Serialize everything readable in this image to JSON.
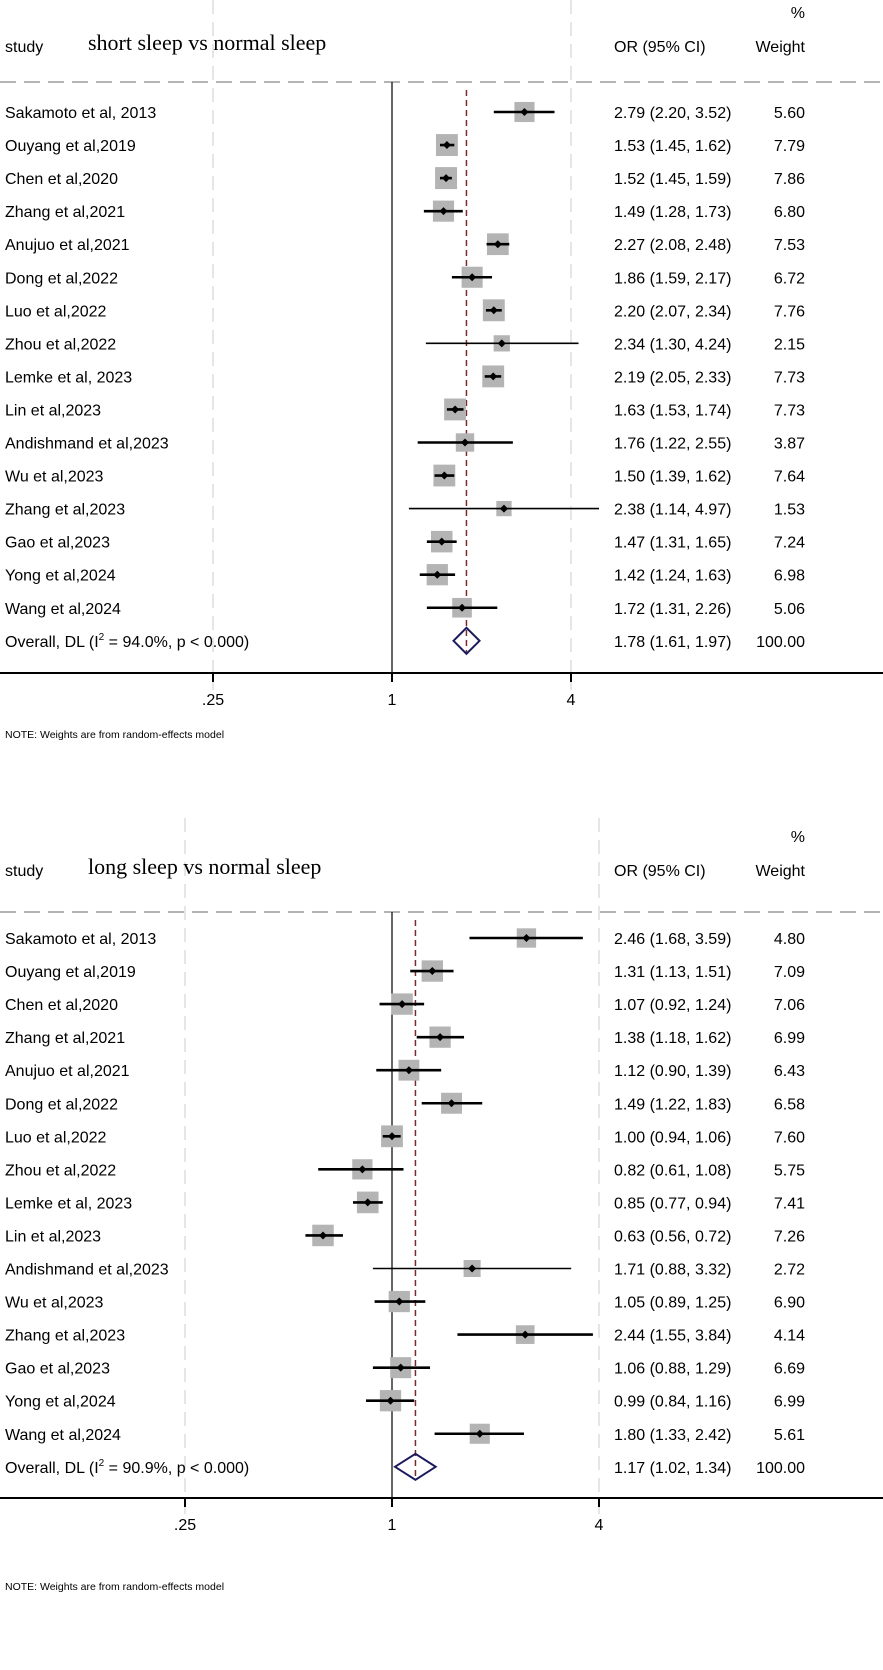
{
  "chart_data": [
    {
      "type": "forest",
      "title": "short sleep vs normal sleep",
      "header": {
        "study": "study",
        "or": "OR (95% CI)",
        "weight_top": "%",
        "weight": "Weight"
      },
      "xscale": "log",
      "xticks": [
        0.25,
        1,
        4
      ],
      "xtick_labels": [
        ".25",
        "1",
        "4"
      ],
      "null_line": 1,
      "studies": [
        {
          "label": "Sakamoto et al, 2013",
          "or": 2.79,
          "lo": 2.2,
          "hi": 3.52,
          "text": "2.79 (2.20, 3.52)",
          "weight": "5.60"
        },
        {
          "label": "Ouyang et al,2019",
          "or": 1.53,
          "lo": 1.45,
          "hi": 1.62,
          "text": "1.53 (1.45, 1.62)",
          "weight": "7.79"
        },
        {
          "label": "Chen et al,2020",
          "or": 1.52,
          "lo": 1.45,
          "hi": 1.59,
          "text": "1.52 (1.45, 1.59)",
          "weight": "7.86"
        },
        {
          "label": "Zhang et al,2021",
          "or": 1.49,
          "lo": 1.28,
          "hi": 1.73,
          "text": "1.49 (1.28, 1.73)",
          "weight": "6.80"
        },
        {
          "label": "Anujuo et al,2021",
          "or": 2.27,
          "lo": 2.08,
          "hi": 2.48,
          "text": "2.27 (2.08, 2.48)",
          "weight": "7.53"
        },
        {
          "label": "Dong et al,2022",
          "or": 1.86,
          "lo": 1.59,
          "hi": 2.17,
          "text": "1.86 (1.59, 2.17)",
          "weight": "6.72"
        },
        {
          "label": "Luo et al,2022",
          "or": 2.2,
          "lo": 2.07,
          "hi": 2.34,
          "text": "2.20 (2.07, 2.34)",
          "weight": "7.76"
        },
        {
          "label": "Zhou et al,2022",
          "or": 2.34,
          "lo": 1.3,
          "hi": 4.24,
          "text": "2.34 (1.30, 4.24)",
          "weight": "2.15"
        },
        {
          "label": "Lemke et al, 2023",
          "or": 2.19,
          "lo": 2.05,
          "hi": 2.33,
          "text": "2.19 (2.05, 2.33)",
          "weight": "7.73"
        },
        {
          "label": "Lin et al,2023",
          "or": 1.63,
          "lo": 1.53,
          "hi": 1.74,
          "text": "1.63 (1.53, 1.74)",
          "weight": "7.73"
        },
        {
          "label": "Andishmand et al,2023",
          "or": 1.76,
          "lo": 1.22,
          "hi": 2.55,
          "text": "1.76 (1.22, 2.55)",
          "weight": "3.87"
        },
        {
          "label": "Wu et al,2023",
          "or": 1.5,
          "lo": 1.39,
          "hi": 1.62,
          "text": "1.50 (1.39, 1.62)",
          "weight": "7.64"
        },
        {
          "label": "Zhang et al,2023",
          "or": 2.38,
          "lo": 1.14,
          "hi": 4.97,
          "text": "2.38 (1.14, 4.97)",
          "weight": "1.53"
        },
        {
          "label": "Gao et al,2023",
          "or": 1.47,
          "lo": 1.31,
          "hi": 1.65,
          "text": "1.47 (1.31, 1.65)",
          "weight": "7.24"
        },
        {
          "label": "Yong et al,2024",
          "or": 1.42,
          "lo": 1.24,
          "hi": 1.63,
          "text": "1.42 (1.24, 1.63)",
          "weight": "6.98"
        },
        {
          "label": "Wang et al,2024",
          "or": 1.72,
          "lo": 1.31,
          "hi": 2.26,
          "text": "1.72 (1.31, 2.26)",
          "weight": "5.06"
        }
      ],
      "overall": {
        "label_pre": "Overall, DL (I",
        "label_sup": "2",
        "label_post": " = 94.0%, p < 0.000)",
        "or": 1.78,
        "lo": 1.61,
        "hi": 1.97,
        "text": "1.78 (1.61, 1.97)",
        "weight": "100.00"
      },
      "note": "NOTE: Weights are from random-effects model"
    },
    {
      "type": "forest",
      "title": "long sleep vs normal sleep",
      "header": {
        "study": "study",
        "or": "OR (95% CI)",
        "weight_top": "%",
        "weight": "Weight"
      },
      "xscale": "log",
      "xticks": [
        0.25,
        1,
        4
      ],
      "xtick_labels": [
        ".25",
        "1",
        "4"
      ],
      "null_line": 1,
      "studies": [
        {
          "label": "Sakamoto et al, 2013",
          "or": 2.46,
          "lo": 1.68,
          "hi": 3.59,
          "text": "2.46 (1.68, 3.59)",
          "weight": "4.80"
        },
        {
          "label": "Ouyang et al,2019",
          "or": 1.31,
          "lo": 1.13,
          "hi": 1.51,
          "text": "1.31 (1.13, 1.51)",
          "weight": "7.09"
        },
        {
          "label": "Chen et al,2020",
          "or": 1.07,
          "lo": 0.92,
          "hi": 1.24,
          "text": "1.07 (0.92, 1.24)",
          "weight": "7.06"
        },
        {
          "label": "Zhang et al,2021",
          "or": 1.38,
          "lo": 1.18,
          "hi": 1.62,
          "text": "1.38 (1.18, 1.62)",
          "weight": "6.99"
        },
        {
          "label": "Anujuo et al,2021",
          "or": 1.12,
          "lo": 0.9,
          "hi": 1.39,
          "text": "1.12 (0.90, 1.39)",
          "weight": "6.43"
        },
        {
          "label": "Dong et al,2022",
          "or": 1.49,
          "lo": 1.22,
          "hi": 1.83,
          "text": "1.49 (1.22, 1.83)",
          "weight": "6.58"
        },
        {
          "label": "Luo et al,2022",
          "or": 1.0,
          "lo": 0.94,
          "hi": 1.06,
          "text": "1.00 (0.94, 1.06)",
          "weight": "7.60"
        },
        {
          "label": "Zhou et al,2022",
          "or": 0.82,
          "lo": 0.61,
          "hi": 1.08,
          "text": "0.82 (0.61, 1.08)",
          "weight": "5.75"
        },
        {
          "label": "Lemke et al, 2023",
          "or": 0.85,
          "lo": 0.77,
          "hi": 0.94,
          "text": "0.85 (0.77, 0.94)",
          "weight": "7.41"
        },
        {
          "label": "Lin et al,2023",
          "or": 0.63,
          "lo": 0.56,
          "hi": 0.72,
          "text": "0.63 (0.56, 0.72)",
          "weight": "7.26"
        },
        {
          "label": "Andishmand et al,2023",
          "or": 1.71,
          "lo": 0.88,
          "hi": 3.32,
          "text": "1.71 (0.88, 3.32)",
          "weight": "2.72"
        },
        {
          "label": "Wu et al,2023",
          "or": 1.05,
          "lo": 0.89,
          "hi": 1.25,
          "text": "1.05 (0.89, 1.25)",
          "weight": "6.90"
        },
        {
          "label": "Zhang et al,2023",
          "or": 2.44,
          "lo": 1.55,
          "hi": 3.84,
          "text": "2.44 (1.55, 3.84)",
          "weight": "4.14"
        },
        {
          "label": "Gao et al,2023",
          "or": 1.06,
          "lo": 0.88,
          "hi": 1.29,
          "text": "1.06 (0.88, 1.29)",
          "weight": "6.69"
        },
        {
          "label": "Yong et al,2024",
          "or": 0.99,
          "lo": 0.84,
          "hi": 1.16,
          "text": "0.99 (0.84, 1.16)",
          "weight": "6.99"
        },
        {
          "label": "Wang et al,2024",
          "or": 1.8,
          "lo": 1.33,
          "hi": 2.42,
          "text": "1.80 (1.33, 2.42)",
          "weight": "5.61"
        }
      ],
      "overall": {
        "label_pre": "Overall, DL (I",
        "label_sup": "2",
        "label_post": " = 90.9%, p < 0.000)",
        "or": 1.17,
        "lo": 1.02,
        "hi": 1.34,
        "text": "1.17 (1.02, 1.34)",
        "weight": "100.00"
      },
      "note": "NOTE: Weights are from random-effects model"
    }
  ],
  "colors": {
    "box": "#b4b4b4",
    "diamond": "#1a1a5e",
    "overall_line": "#7a2a2a",
    "grid": "#e6e6e6",
    "header_rule": "#b4b4b4"
  }
}
